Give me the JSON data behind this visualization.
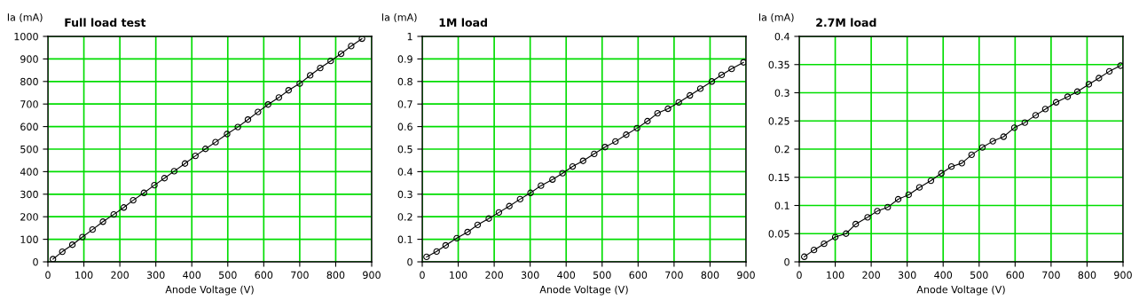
{
  "chart_data": [
    {
      "type": "line",
      "title": "Full load test",
      "xlabel": "Anode Voltage (V)",
      "ylabel": "Ia (mA)",
      "color": "#000000",
      "marker": "circle",
      "line_style": "solid",
      "grid": true,
      "x": [
        14,
        40,
        68,
        96,
        124,
        153,
        183,
        211,
        237,
        267,
        296,
        324,
        351,
        381,
        410,
        438,
        466,
        498,
        528,
        556,
        584,
        612,
        642,
        669,
        700,
        729,
        757,
        786,
        815,
        843,
        873
      ],
      "values": [
        12,
        45,
        76,
        110,
        143,
        178,
        210,
        241,
        273,
        306,
        340,
        371,
        402,
        436,
        470,
        501,
        531,
        567,
        598,
        631,
        665,
        698,
        729,
        761,
        791,
        827,
        860,
        891,
        923,
        957,
        990
      ],
      "xlim": [
        0,
        900
      ],
      "xticks": [
        0,
        100,
        200,
        300,
        400,
        500,
        600,
        700,
        800,
        900
      ],
      "ylim": [
        0,
        1000
      ],
      "yticks": [
        0,
        100,
        200,
        300,
        400,
        500,
        600,
        700,
        800,
        900,
        1000
      ]
    },
    {
      "type": "line",
      "title": "1M load",
      "xlabel": "Anode Voltage (V)",
      "ylabel": "Ia (mA)",
      "color": "#000000",
      "marker": "circle",
      "line_style": "solid",
      "grid": true,
      "x": [
        12,
        40,
        65,
        96,
        126,
        154,
        185,
        213,
        242,
        272,
        301,
        330,
        362,
        390,
        418,
        447,
        478,
        508,
        537,
        567,
        597,
        626,
        654,
        683,
        713,
        744,
        773,
        805,
        832,
        860,
        893
      ],
      "values": [
        0.022,
        0.046,
        0.073,
        0.105,
        0.132,
        0.164,
        0.192,
        0.219,
        0.247,
        0.278,
        0.306,
        0.338,
        0.365,
        0.393,
        0.423,
        0.448,
        0.479,
        0.509,
        0.534,
        0.564,
        0.593,
        0.624,
        0.659,
        0.679,
        0.707,
        0.738,
        0.768,
        0.8,
        0.829,
        0.856,
        0.885
      ],
      "xlim": [
        0,
        900
      ],
      "xticks": [
        0,
        100,
        200,
        300,
        400,
        500,
        600,
        700,
        800,
        900
      ],
      "ylim": [
        0,
        1
      ],
      "yticks": [
        0,
        0.1,
        0.2,
        0.3,
        0.4,
        0.5,
        0.6,
        0.7,
        0.8,
        0.9,
        1
      ]
    },
    {
      "type": "line",
      "title": "2.7M load",
      "xlabel": "Anode Voltage (V)",
      "ylabel": "Ia (mA)",
      "color": "#000000",
      "marker": "circle",
      "line_style": "solid",
      "grid": true,
      "x": [
        14,
        41,
        69,
        100,
        130,
        157,
        190,
        217,
        246,
        275,
        304,
        334,
        366,
        395,
        423,
        452,
        479,
        509,
        538,
        568,
        598,
        627,
        657,
        684,
        714,
        746,
        773,
        805,
        833,
        862,
        893
      ],
      "values": [
        0.009,
        0.021,
        0.032,
        0.044,
        0.05,
        0.067,
        0.079,
        0.09,
        0.097,
        0.111,
        0.119,
        0.132,
        0.144,
        0.157,
        0.169,
        0.175,
        0.19,
        0.203,
        0.214,
        0.222,
        0.238,
        0.247,
        0.26,
        0.271,
        0.283,
        0.293,
        0.302,
        0.315,
        0.326,
        0.338,
        0.348
      ],
      "xlim": [
        0,
        900
      ],
      "xticks": [
        0,
        100,
        200,
        300,
        400,
        500,
        600,
        700,
        800,
        900
      ],
      "ylim": [
        0,
        0.4
      ],
      "yticks": [
        0,
        0.05,
        0.1,
        0.15,
        0.2,
        0.25,
        0.3,
        0.35,
        0.4
      ]
    }
  ]
}
